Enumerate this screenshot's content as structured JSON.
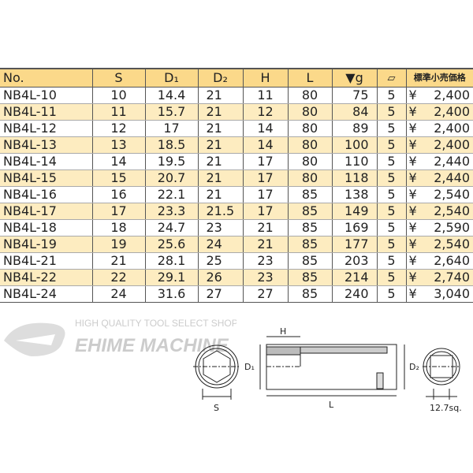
{
  "columns": [
    "No.",
    "S",
    "D₁",
    "D₂",
    "H",
    "L",
    "▼g",
    "",
    "標準小売価格"
  ],
  "box_icon": "package-icon",
  "rows": [
    [
      "NB4L-10",
      "10",
      "14.4",
      "21",
      "11",
      "80",
      "75",
      "5",
      "¥",
      "2,400"
    ],
    [
      "NB4L-11",
      "11",
      "15.7",
      "21",
      "12",
      "80",
      "84",
      "5",
      "¥",
      "2,400"
    ],
    [
      "NB4L-12",
      "12",
      "17",
      "21",
      "14",
      "80",
      "89",
      "5",
      "¥",
      "2,400"
    ],
    [
      "NB4L-13",
      "13",
      "18.5",
      "21",
      "14",
      "80",
      "100",
      "5",
      "¥",
      "2,400"
    ],
    [
      "NB4L-14",
      "14",
      "19.5",
      "21",
      "17",
      "80",
      "110",
      "5",
      "¥",
      "2,440"
    ],
    [
      "NB4L-15",
      "15",
      "20.7",
      "21",
      "17",
      "80",
      "118",
      "5",
      "¥",
      "2,440"
    ],
    [
      "NB4L-16",
      "16",
      "22.1",
      "21",
      "17",
      "85",
      "138",
      "5",
      "¥",
      "2,540"
    ],
    [
      "NB4L-17",
      "17",
      "23.3",
      "21.5",
      "17",
      "85",
      "149",
      "5",
      "¥",
      "2,540"
    ],
    [
      "NB4L-18",
      "18",
      "24.7",
      "23",
      "21",
      "85",
      "169",
      "5",
      "¥",
      "2,590"
    ],
    [
      "NB4L-19",
      "19",
      "25.6",
      "24",
      "21",
      "85",
      "177",
      "5",
      "¥",
      "2,540"
    ],
    [
      "NB4L-21",
      "21",
      "28.1",
      "25",
      "23",
      "85",
      "203",
      "5",
      "¥",
      "2,640"
    ],
    [
      "NB4L-22",
      "22",
      "29.1",
      "26",
      "23",
      "85",
      "214",
      "5",
      "¥",
      "2,740"
    ],
    [
      "NB4L-24",
      "24",
      "31.6",
      "27",
      "27",
      "85",
      "240",
      "5",
      "¥",
      "3,040"
    ]
  ],
  "watermark": {
    "tagline": "HIGH QUALITY TOOL SELECT SHOP",
    "brand": "EHIME MACHINE"
  },
  "diagram": {
    "s": "S",
    "d1": "D₁",
    "h": "H",
    "l": "L",
    "d2": "D₂",
    "sq": "12.7sq."
  },
  "colors": {
    "header": "#fbd98a",
    "alt_row": "#fdecc0"
  }
}
